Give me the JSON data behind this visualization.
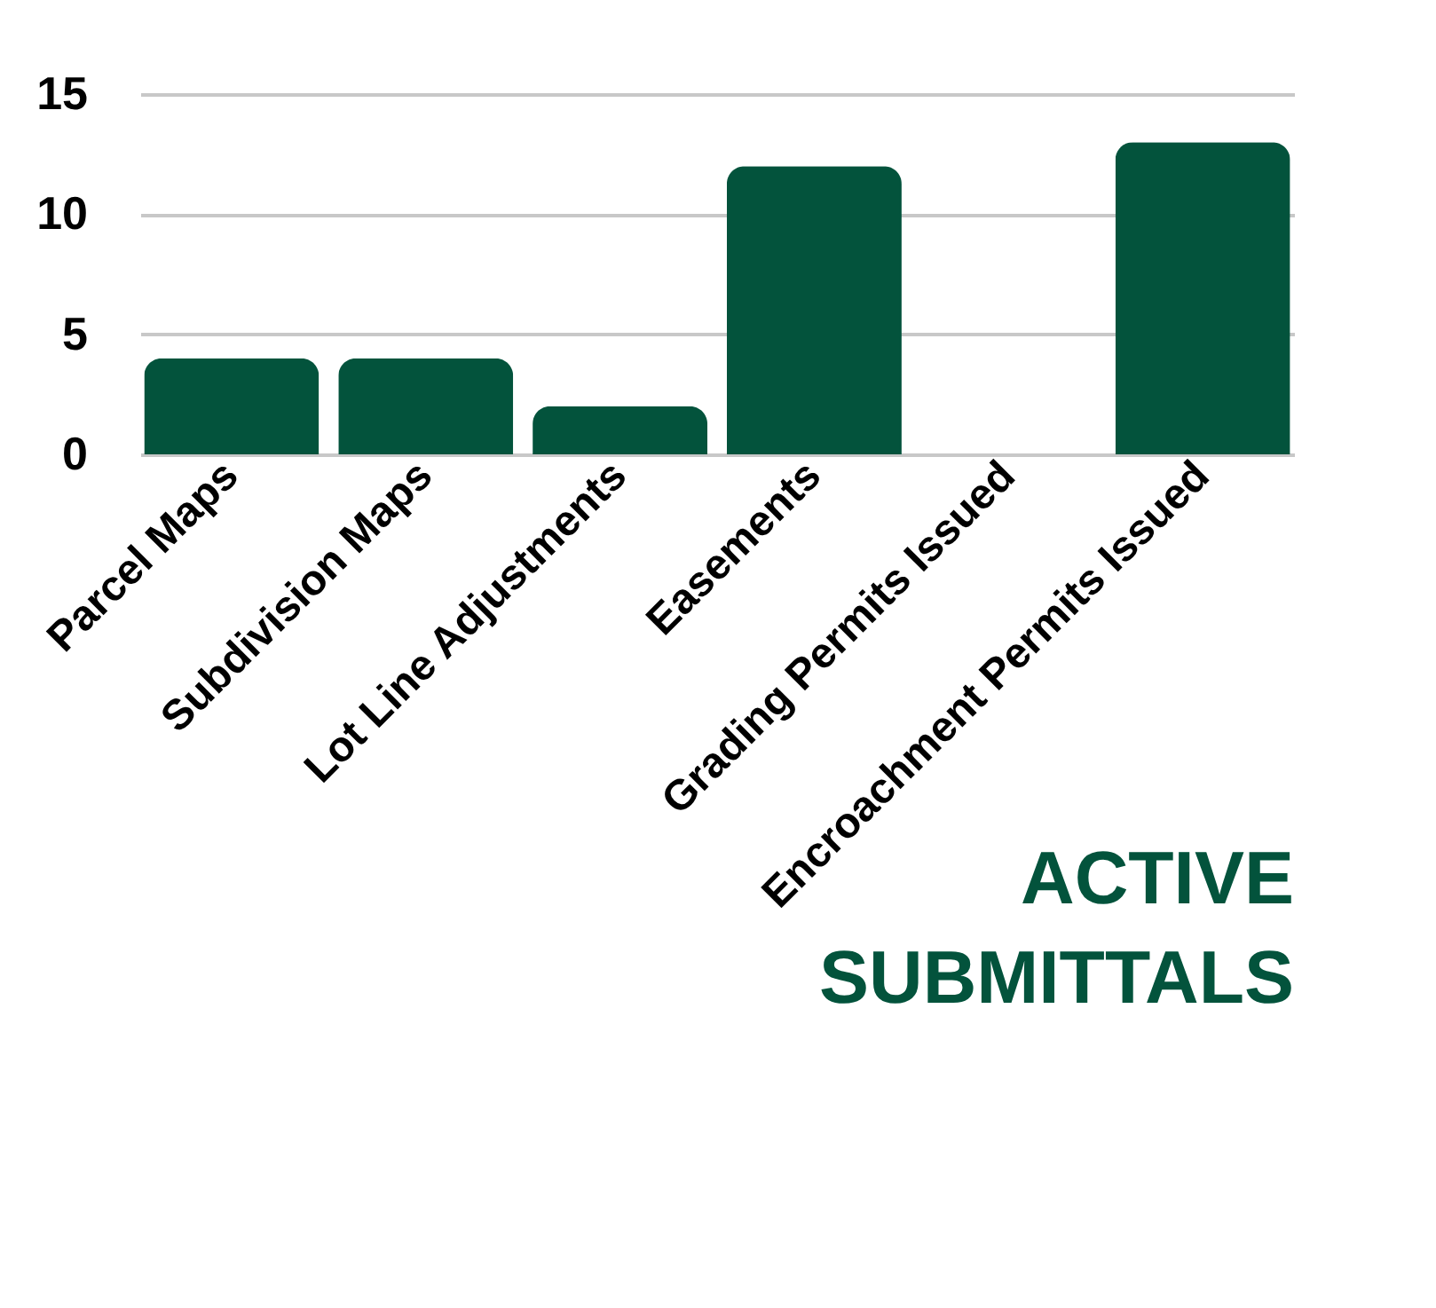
{
  "chart_data": {
    "type": "bar",
    "title": [
      "ACTIVE",
      "SUBMITTALS"
    ],
    "categories": [
      "Parcel Maps",
      "Subdivision Maps",
      "Lot Line Adjustments",
      "Easements",
      "Grading Permits Issued",
      "Encroachment Permits Issued"
    ],
    "values": [
      4,
      4,
      2,
      12,
      0,
      13
    ],
    "color": "#03533c",
    "ylim": [
      0,
      15
    ],
    "yticks": [
      0,
      5,
      10,
      15
    ],
    "grid": "y"
  }
}
